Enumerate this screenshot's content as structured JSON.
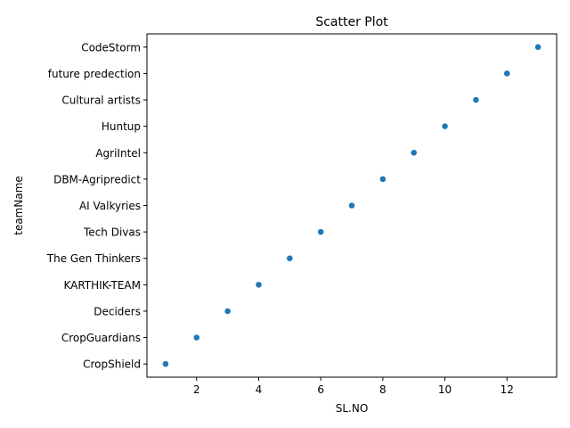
{
  "chart_data": {
    "type": "scatter",
    "title": "Scatter Plot",
    "xlabel": "SL.NO",
    "ylabel": "teamName",
    "xlim": [
      0.4,
      13.6
    ],
    "xticks": [
      2,
      4,
      6,
      8,
      10,
      12
    ],
    "grid": false,
    "marker_color": "#1f77b4",
    "categories": [
      "CropShield",
      "CropGuardians",
      "Deciders",
      "KARTHIK-TEAM",
      "The Gen Thinkers",
      "Tech Divas",
      "AI Valkyries",
      "DBM-Agripredict",
      "AgriIntel",
      "Huntup",
      "Cultural artists",
      "future predection",
      "CodeStorm"
    ],
    "points": [
      {
        "x": 1,
        "y": "CropShield"
      },
      {
        "x": 2,
        "y": "CropGuardians"
      },
      {
        "x": 3,
        "y": "Deciders"
      },
      {
        "x": 4,
        "y": "KARTHIK-TEAM"
      },
      {
        "x": 5,
        "y": "The Gen Thinkers"
      },
      {
        "x": 6,
        "y": "Tech Divas"
      },
      {
        "x": 7,
        "y": "AI Valkyries"
      },
      {
        "x": 8,
        "y": "DBM-Agripredict"
      },
      {
        "x": 9,
        "y": "AgriIntel"
      },
      {
        "x": 10,
        "y": "Huntup"
      },
      {
        "x": 11,
        "y": "Cultural artists"
      },
      {
        "x": 12,
        "y": "future predection"
      },
      {
        "x": 13,
        "y": "CodeStorm"
      }
    ]
  }
}
